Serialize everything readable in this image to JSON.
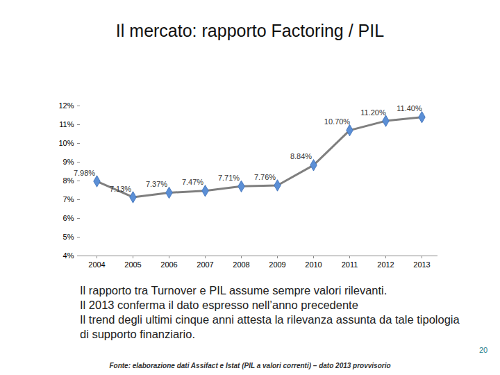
{
  "chart_data": {
    "type": "line",
    "title": "Il mercato: rapporto Factoring / PIL",
    "categories": [
      "2004",
      "2005",
      "2006",
      "2007",
      "2008",
      "2009",
      "2010",
      "2011",
      "2012",
      "2013"
    ],
    "values": [
      7.98,
      7.13,
      7.37,
      7.47,
      7.71,
      7.76,
      8.84,
      10.7,
      11.2,
      11.4
    ],
    "value_labels": [
      "7.98%",
      "7.13%",
      "7.37%",
      "7.47%",
      "7.71%",
      "7.76%",
      "8.84%",
      "10.70%",
      "11.20%",
      "11.40%"
    ],
    "data_labels": true,
    "color": "#5b8fd6",
    "marker": "diamond",
    "ylim": [
      4,
      12
    ],
    "yticks": [
      {
        "value": 4,
        "label": "4%"
      },
      {
        "value": 5,
        "label": "5%"
      },
      {
        "value": 6,
        "label": "6%"
      },
      {
        "value": 7,
        "label": "7%"
      },
      {
        "value": 8,
        "label": "8%"
      },
      {
        "value": 9,
        "label": "9%"
      },
      {
        "value": 10,
        "label": "10%"
      },
      {
        "value": 11,
        "label": "11%"
      },
      {
        "value": 12,
        "label": "12%"
      }
    ],
    "grid": false,
    "caption": [
      "Il rapporto tra Turnover e PIL assume sempre valori rilevanti.",
      "Il 2013 conferma il dato espresso nell’anno precedente",
      "Il trend degli ultimi cinque anni attesta la rilevanza assunta da tale tipologia di supporto finanziario."
    ],
    "source": "Fonte: elaborazione dati Assifact e Istat (PIL a valori correnti) – dato 2013 provvisorio",
    "page": "20"
  }
}
